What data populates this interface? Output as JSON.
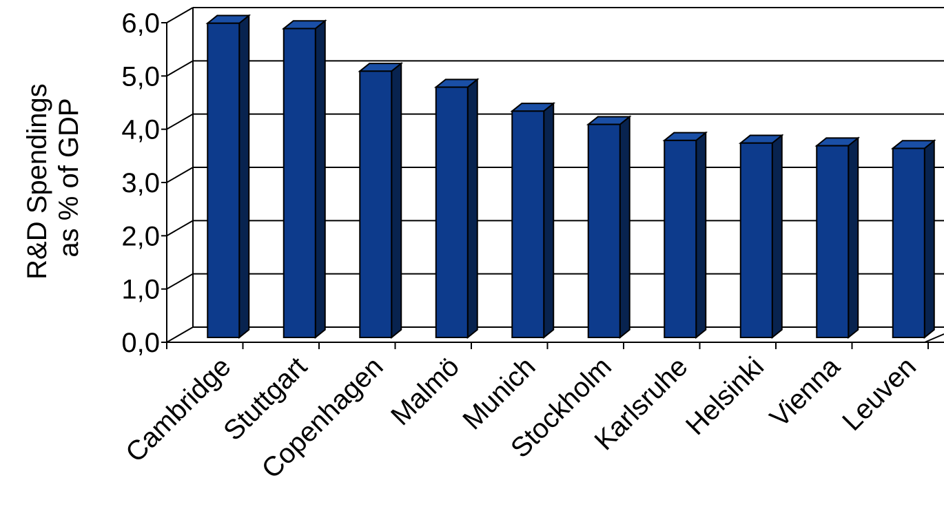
{
  "chart_data": {
    "type": "bar",
    "style": "3d",
    "ylabel_lines": [
      "R&D Spendings",
      "as % of GDP"
    ],
    "xlabel": "",
    "categories": [
      "Cambridge",
      "Stuttgart",
      "Copenhagen",
      "Malmö",
      "Munich",
      "Stockholm",
      "Karlsruhe",
      "Helsinki",
      "Vienna",
      "Leuven"
    ],
    "values": [
      5.9,
      5.8,
      5.0,
      4.7,
      4.25,
      4.0,
      3.7,
      3.65,
      3.6,
      3.55
    ],
    "ylim": [
      0,
      6
    ],
    "yticks": [
      "0,0",
      "1,0",
      "2,0",
      "3,0",
      "4,0",
      "5,0",
      "6,0"
    ],
    "grid": true,
    "legend": "none"
  },
  "colors": {
    "bar_front": "#0d3b8c",
    "bar_top": "#1a4fa6",
    "bar_side": "#08234f",
    "grid": "#000000"
  }
}
